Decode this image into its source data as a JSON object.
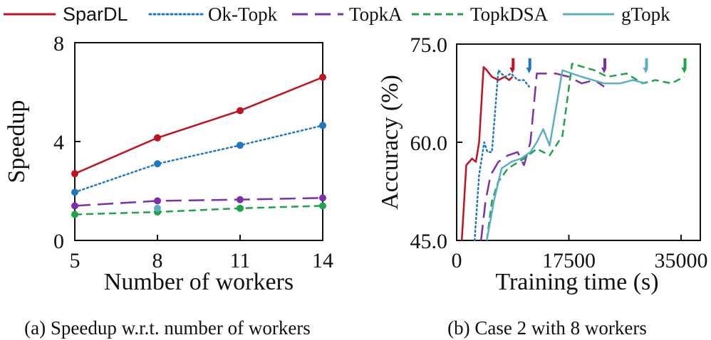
{
  "legend": [
    {
      "id": "sparDL",
      "label": "SparDL",
      "color": "#c1121f",
      "dash": "solid"
    },
    {
      "id": "okTopk",
      "label": "Ok-Topk",
      "color": "#1f77c4",
      "dash": "dotted"
    },
    {
      "id": "topkA",
      "label": "TopkA",
      "color": "#7b2fa8",
      "dash": "longdash"
    },
    {
      "id": "topkDSA",
      "label": "TopkDSA",
      "color": "#1fa34a",
      "dash": "dashed"
    },
    {
      "id": "gTopk",
      "label": "gTopk",
      "color": "#5aafc7",
      "dash": "solid"
    }
  ],
  "chart_data": [
    {
      "type": "line",
      "caption": "(a) Speedup w.r.t. number of workers",
      "xlabel": "Number of workers",
      "ylabel": "Speedup",
      "x": [
        5,
        8,
        11,
        14
      ],
      "xticks": [
        "5",
        "8",
        "11",
        "14"
      ],
      "yticks": [
        "0",
        "4",
        "8"
      ],
      "ylim": [
        0,
        8
      ],
      "series": [
        {
          "name": "SparDL",
          "values": [
            2.7,
            4.15,
            5.25,
            6.6
          ]
        },
        {
          "name": "Ok-Topk",
          "values": [
            1.95,
            3.1,
            3.85,
            4.65
          ]
        },
        {
          "name": "TopkA",
          "values": [
            1.4,
            1.6,
            1.65,
            1.72
          ]
        },
        {
          "name": "TopkDSA",
          "values": [
            1.05,
            1.15,
            1.3,
            1.4
          ]
        },
        {
          "name": "gTopk",
          "values": [
            null,
            1.3,
            null,
            null
          ]
        }
      ]
    },
    {
      "type": "line",
      "caption": "(b) Case 2 with 8 workers",
      "xlabel": "Training time (s)",
      "ylabel": "Accuracy (%)",
      "xticks": [
        "0",
        "17500",
        "35000"
      ],
      "yticks": [
        "45.0",
        "60.0",
        "75.0"
      ],
      "xlim": [
        0,
        38000
      ],
      "ylim": [
        45,
        75
      ],
      "series": [
        {
          "name": "SparDL",
          "x": [
            800,
            1500,
            2400,
            3000,
            3500,
            4200,
            4700,
            5500,
            6500,
            7500,
            8200,
            8700
          ],
          "y": [
            45,
            56.5,
            57.5,
            57,
            60,
            71.5,
            71,
            70,
            69.5,
            70,
            69.5,
            70
          ]
        },
        {
          "name": "Ok-Topk",
          "x": [
            2800,
            3500,
            4300,
            4800,
            5500,
            6500,
            7500,
            8500,
            9500,
            10500,
            11300
          ],
          "y": [
            45,
            55,
            60,
            58.5,
            58.5,
            71,
            70,
            70.5,
            69.5,
            69.5,
            68.5
          ]
        },
        {
          "name": "TopkA",
          "x": [
            3800,
            4500,
            5300,
            6500,
            8000,
            9500,
            10500,
            11500,
            12500,
            15500,
            17500,
            19500,
            21500,
            23000
          ],
          "y": [
            45,
            51,
            55,
            57,
            58,
            58.5,
            56.5,
            60,
            70.5,
            70.5,
            70,
            69,
            69.5,
            68.5
          ]
        },
        {
          "name": "TopkDSA",
          "x": [
            4700,
            5500,
            6500,
            8000,
            10500,
            12500,
            14500,
            16500,
            18000,
            21500,
            23500,
            26500,
            29000,
            31000,
            33500,
            35500
          ],
          "y": [
            45,
            51,
            54,
            56,
            57.5,
            59,
            58,
            61,
            72,
            71,
            70,
            70.5,
            69,
            69.5,
            69,
            70
          ]
        },
        {
          "name": "gTopk",
          "x": [
            4700,
            5800,
            7000,
            8500,
            10000,
            11500,
            12500,
            13500,
            14500,
            16500,
            19500,
            23000,
            25500,
            27500,
            29500
          ],
          "y": [
            45,
            51,
            56,
            57,
            57.5,
            58.5,
            60,
            62,
            59.5,
            71,
            70,
            69,
            69,
            69.5,
            69
          ]
        }
      ],
      "markers": [
        {
          "name": "SparDL",
          "x": 8700
        },
        {
          "name": "Ok-Topk",
          "x": 11300
        },
        {
          "name": "TopkA",
          "x": 23000
        },
        {
          "name": "gTopk",
          "x": 29500
        },
        {
          "name": "TopkDSA",
          "x": 35500
        }
      ]
    }
  ]
}
